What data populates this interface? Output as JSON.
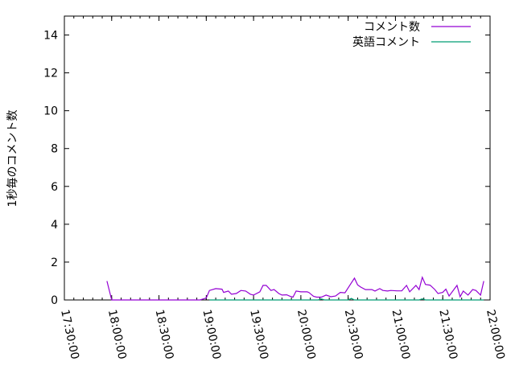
{
  "chart_data": {
    "type": "line",
    "title": "",
    "xlabel": "",
    "ylabel": "1秒毎のコメント数",
    "xlim": [
      "17:30:00",
      "22:00:00"
    ],
    "ylim": [
      0,
      15
    ],
    "xticks": [
      "17:30:00",
      "18:00:00",
      "18:30:00",
      "19:00:00",
      "19:30:00",
      "20:00:00",
      "20:30:00",
      "21:00:00",
      "21:30:00",
      "22:00:00"
    ],
    "yticks": [
      "0",
      "2",
      "4",
      "6",
      "8",
      "10",
      "12",
      "14"
    ],
    "grid": false,
    "legend_position": "top-right",
    "series": [
      {
        "name": "コメント数",
        "color": "#9400d3",
        "points": [
          [
            "17:57",
            1.0
          ],
          [
            "18:00",
            0
          ],
          [
            "18:56",
            0
          ],
          [
            "19:00",
            0.1
          ],
          [
            "19:02",
            0.5
          ],
          [
            "19:06",
            0.6
          ],
          [
            "19:10",
            0.57
          ],
          [
            "19:11",
            0.4
          ],
          [
            "19:14",
            0.47
          ],
          [
            "19:16",
            0.3
          ],
          [
            "19:19",
            0.34
          ],
          [
            "19:22",
            0.5
          ],
          [
            "19:25",
            0.47
          ],
          [
            "19:28",
            0.3
          ],
          [
            "19:30",
            0.26
          ],
          [
            "19:34",
            0.43
          ],
          [
            "19:36",
            0.77
          ],
          [
            "19:38",
            0.77
          ],
          [
            "19:41",
            0.5
          ],
          [
            "19:43",
            0.55
          ],
          [
            "19:46",
            0.34
          ],
          [
            "19:48",
            0.26
          ],
          [
            "19:51",
            0.27
          ],
          [
            "19:53",
            0.2
          ],
          [
            "19:55",
            0.15
          ],
          [
            "19:57",
            0.47
          ],
          [
            "20:00",
            0.43
          ],
          [
            "20:04",
            0.43
          ],
          [
            "20:05",
            0.4
          ],
          [
            "20:08",
            0.19
          ],
          [
            "20:10",
            0.15
          ],
          [
            "20:13",
            0.15
          ],
          [
            "20:16",
            0.26
          ],
          [
            "20:19",
            0.17
          ],
          [
            "20:22",
            0.21
          ],
          [
            "20:25",
            0.4
          ],
          [
            "20:28",
            0.38
          ],
          [
            "20:32",
            0.9
          ],
          [
            "20:34",
            1.15
          ],
          [
            "20:36",
            0.8
          ],
          [
            "20:38",
            0.68
          ],
          [
            "20:41",
            0.55
          ],
          [
            "20:45",
            0.55
          ],
          [
            "20:47",
            0.47
          ],
          [
            "20:50",
            0.6
          ],
          [
            "20:52",
            0.5
          ],
          [
            "20:55",
            0.47
          ],
          [
            "20:57",
            0.5
          ],
          [
            "21:01",
            0.48
          ],
          [
            "21:04",
            0.48
          ],
          [
            "21:07",
            0.77
          ],
          [
            "21:09",
            0.43
          ],
          [
            "21:13",
            0.77
          ],
          [
            "21:15",
            0.55
          ],
          [
            "21:17",
            1.2
          ],
          [
            "21:19",
            0.82
          ],
          [
            "21:22",
            0.78
          ],
          [
            "21:25",
            0.55
          ],
          [
            "21:27",
            0.34
          ],
          [
            "21:30",
            0.4
          ],
          [
            "21:32",
            0.57
          ],
          [
            "21:34",
            0.21
          ],
          [
            "21:39",
            0.77
          ],
          [
            "21:41",
            0.17
          ],
          [
            "21:43",
            0.47
          ],
          [
            "21:46",
            0.26
          ],
          [
            "21:49",
            0.55
          ],
          [
            "21:51",
            0.5
          ],
          [
            "21:54",
            0.26
          ],
          [
            "21:56",
            1.0
          ]
        ]
      },
      {
        "name": "英語コメント",
        "color": "#009e73",
        "points": [
          [
            "19:02",
            0
          ],
          [
            "20:11",
            0
          ],
          [
            "20:13",
            0.05
          ],
          [
            "20:15",
            0
          ],
          [
            "20:30",
            0
          ],
          [
            "20:32",
            0.08
          ],
          [
            "20:34",
            0
          ],
          [
            "21:15",
            0
          ],
          [
            "21:17",
            0.06
          ],
          [
            "21:19",
            0
          ],
          [
            "21:56",
            0
          ]
        ]
      }
    ]
  }
}
